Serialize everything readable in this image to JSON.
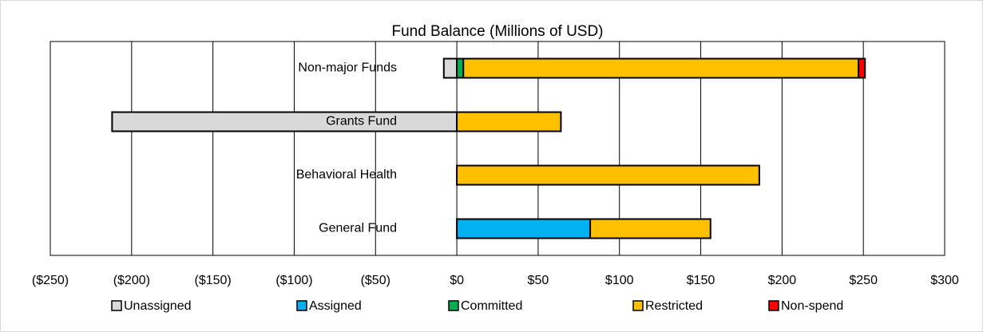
{
  "chart_data": {
    "type": "stacked-bar-horizontal",
    "title": "Fund Balance (Millions of USD)",
    "categories": [
      "Non-major Funds",
      "Grants Fund",
      "Behavioral Health",
      "General Fund"
    ],
    "series": [
      {
        "name": "Unassigned",
        "color": "#d9d9d9",
        "values": [
          -8,
          -212,
          null,
          null
        ]
      },
      {
        "name": "Assigned",
        "color": "#00b0f0",
        "values": [
          null,
          null,
          null,
          82
        ]
      },
      {
        "name": "Committed",
        "color": "#00b050",
        "values": [
          4,
          null,
          null,
          null
        ]
      },
      {
        "name": "Restricted",
        "color": "#ffc000",
        "values": [
          243,
          64,
          186,
          74
        ]
      },
      {
        "name": "Non-spend",
        "color": "#ff0000",
        "values": [
          4,
          null,
          null,
          null
        ]
      }
    ],
    "xlim": [
      -250,
      300
    ],
    "xticks": [
      {
        "value": -250,
        "label": "($250)"
      },
      {
        "value": -200,
        "label": "($200)"
      },
      {
        "value": -150,
        "label": "($150)"
      },
      {
        "value": -100,
        "label": "($100)"
      },
      {
        "value": -50,
        "label": "($50)"
      },
      {
        "value": 0,
        "label": "$0"
      },
      {
        "value": 50,
        "label": "$50"
      },
      {
        "value": 100,
        "label": "$100"
      },
      {
        "value": 150,
        "label": "$150"
      },
      {
        "value": 200,
        "label": "$200"
      },
      {
        "value": 250,
        "label": "$250"
      },
      {
        "value": 300,
        "label": "$300"
      }
    ],
    "grid": true,
    "legend": "bottom"
  }
}
